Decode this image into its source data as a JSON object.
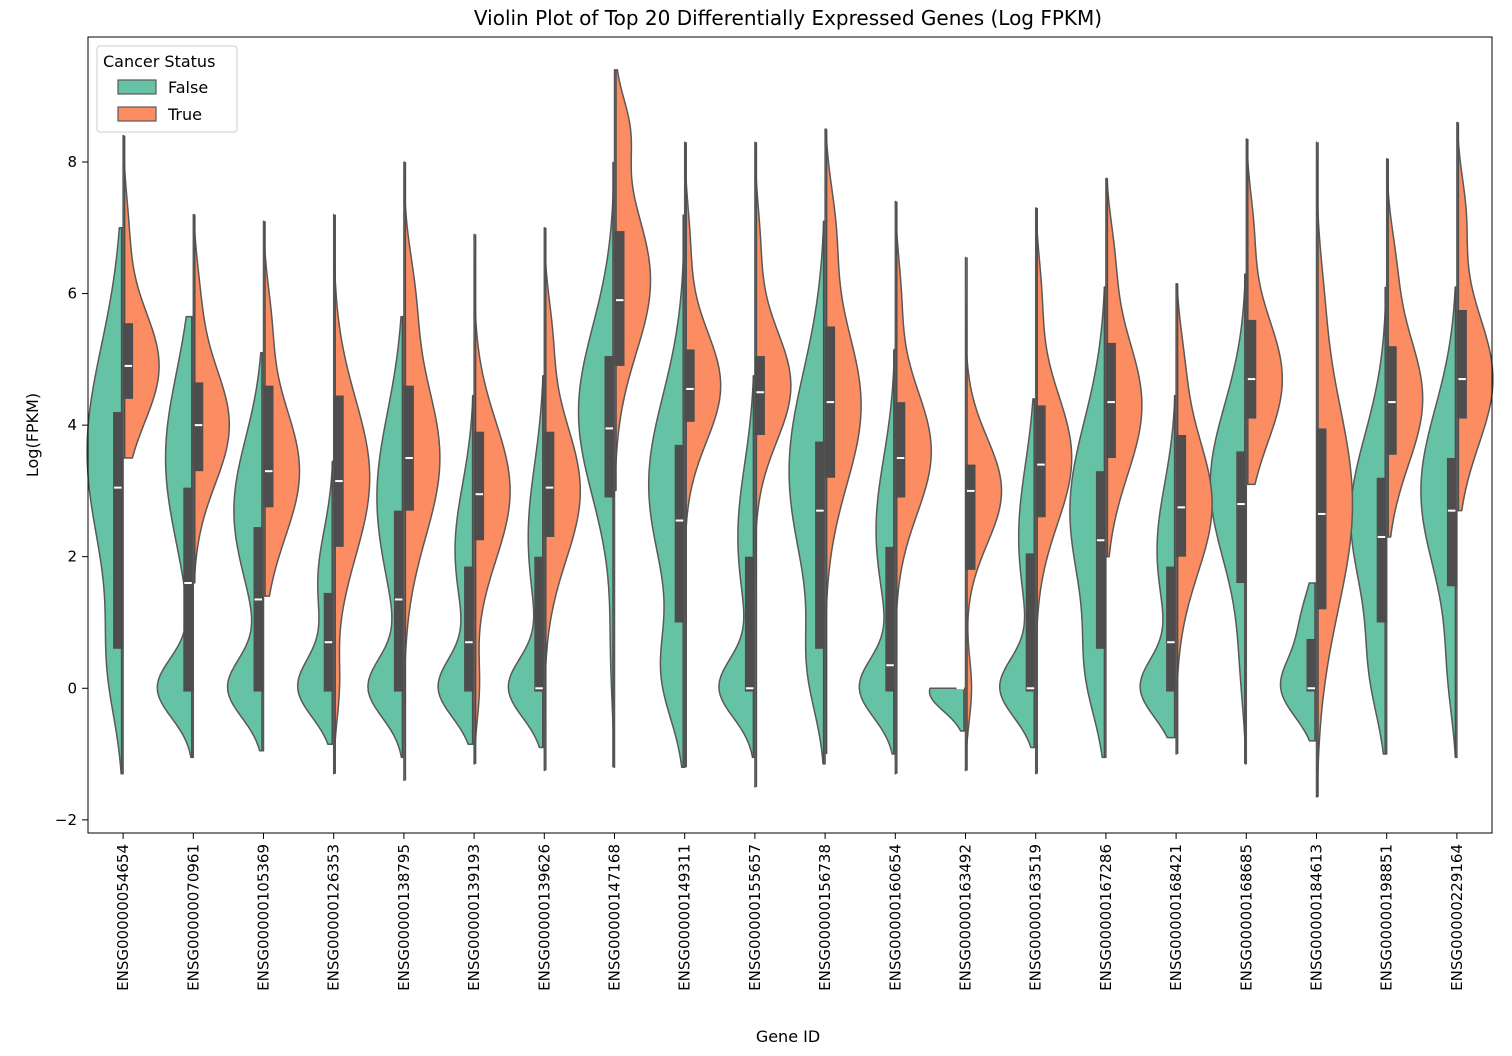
{
  "chart_data": {
    "type": "violin",
    "title": "Violin Plot of Top 20 Differentially Expressed Genes (Log FPKM)",
    "xlabel": "Gene ID",
    "ylabel": "Log(FPKM)",
    "ylim": [
      -2.2,
      9.9
    ],
    "yticks": [
      -2,
      0,
      2,
      4,
      6,
      8
    ],
    "ytick_labels": [
      "−2",
      "0",
      "2",
      "4",
      "6",
      "8"
    ],
    "split": true,
    "legend": {
      "title": "Cancer Status",
      "placement": "top-left",
      "entries": [
        {
          "label": "False",
          "color": "#66c2a5"
        },
        {
          "label": "True",
          "color": "#fc8d62"
        }
      ]
    },
    "colors": {
      "false": "#66c2a5",
      "true": "#fc8d62",
      "outline": "#595959",
      "box": "#4d4d4d"
    },
    "categories": [
      "ENSG00000054654",
      "ENSG00000070961",
      "ENSG00000105369",
      "ENSG00000126353",
      "ENSG00000138795",
      "ENSG00000139193",
      "ENSG00000139626",
      "ENSG00000147168",
      "ENSG00000149311",
      "ENSG00000155657",
      "ENSG00000156738",
      "ENSG00000160654",
      "ENSG00000163492",
      "ENSG00000163519",
      "ENSG00000167286",
      "ENSG00000168421",
      "ENSG00000168685",
      "ENSG00000184613",
      "ENSG00000198851",
      "ENSG00000229164"
    ],
    "series": [
      {
        "name": "False",
        "violins": [
          {
            "min": -1.3,
            "max": 7.0,
            "q1": 0.6,
            "median": 3.05,
            "q3": 4.2,
            "modes": [
              [
                3.6,
                0.75,
                1.6
              ],
              [
                0.3,
                0.25,
                0.8
              ]
            ]
          },
          {
            "min": -1.05,
            "max": 5.65,
            "q1": -0.05,
            "median": 1.6,
            "q3": 3.05,
            "modes": [
              [
                0.0,
                0.7,
                0.45
              ],
              [
                3.5,
                0.55,
                1.3
              ]
            ]
          },
          {
            "min": -0.95,
            "max": 5.1,
            "q1": -0.05,
            "median": 1.35,
            "q3": 2.45,
            "modes": [
              [
                0.0,
                0.7,
                0.45
              ],
              [
                2.7,
                0.6,
                1.1
              ]
            ]
          },
          {
            "min": -0.85,
            "max": 3.45,
            "q1": -0.05,
            "median": 0.7,
            "q3": 1.45,
            "modes": [
              [
                0.0,
                0.85,
                0.45
              ],
              [
                1.6,
                0.4,
                0.8
              ]
            ]
          },
          {
            "min": -1.05,
            "max": 5.65,
            "q1": -0.05,
            "median": 1.35,
            "q3": 2.7,
            "modes": [
              [
                0.0,
                0.75,
                0.45
              ],
              [
                2.9,
                0.6,
                1.3
              ]
            ]
          },
          {
            "min": -0.85,
            "max": 4.45,
            "q1": -0.05,
            "median": 0.7,
            "q3": 1.85,
            "modes": [
              [
                0.0,
                0.8,
                0.45
              ],
              [
                2.1,
                0.45,
                1.0
              ]
            ]
          },
          {
            "min": -0.9,
            "max": 4.75,
            "q1": -0.05,
            "median": 0.0,
            "q3": 2.0,
            "modes": [
              [
                0.0,
                0.85,
                0.45
              ],
              [
                2.3,
                0.4,
                1.1
              ]
            ]
          },
          {
            "min": -1.2,
            "max": 8.0,
            "q1": 2.9,
            "median": 3.95,
            "q3": 5.05,
            "modes": [
              [
                4.2,
                0.85,
                1.3
              ],
              [
                0.5,
                0.08,
                0.8
              ]
            ]
          },
          {
            "min": -1.2,
            "max": 7.2,
            "q1": 1.0,
            "median": 2.55,
            "q3": 3.7,
            "modes": [
              [
                3.1,
                0.8,
                1.35
              ],
              [
                0.2,
                0.45,
                0.7
              ]
            ]
          },
          {
            "min": -1.05,
            "max": 4.75,
            "q1": -0.05,
            "median": 0.0,
            "q3": 2.0,
            "modes": [
              [
                0.0,
                0.8,
                0.45
              ],
              [
                2.3,
                0.4,
                1.1
              ]
            ]
          },
          {
            "min": -1.15,
            "max": 7.1,
            "q1": 0.6,
            "median": 2.7,
            "q3": 3.75,
            "modes": [
              [
                3.3,
                0.8,
                1.5
              ],
              [
                0.3,
                0.3,
                0.7
              ]
            ]
          },
          {
            "min": -1.0,
            "max": 5.15,
            "q1": -0.05,
            "median": 0.35,
            "q3": 2.15,
            "modes": [
              [
                0.0,
                0.8,
                0.45
              ],
              [
                2.4,
                0.45,
                1.1
              ]
            ]
          },
          {
            "min": -0.65,
            "max": 0.0,
            "q1": 0.0,
            "median": 0.0,
            "q3": 0.0,
            "modes": [
              [
                -0.05,
                0.8,
                0.3
              ]
            ]
          },
          {
            "min": -0.9,
            "max": 4.4,
            "q1": -0.05,
            "median": 0.0,
            "q3": 2.05,
            "modes": [
              [
                0.0,
                0.8,
                0.45
              ],
              [
                2.3,
                0.4,
                1.1
              ]
            ]
          },
          {
            "min": -1.05,
            "max": 6.1,
            "q1": 0.6,
            "median": 2.25,
            "q3": 3.3,
            "modes": [
              [
                2.7,
                0.75,
                1.35
              ],
              [
                0.2,
                0.3,
                0.7
              ]
            ]
          },
          {
            "min": -0.75,
            "max": 4.45,
            "q1": -0.05,
            "median": 0.7,
            "q3": 1.85,
            "modes": [
              [
                0.0,
                0.8,
                0.45
              ],
              [
                2.1,
                0.45,
                1.0
              ]
            ]
          },
          {
            "min": -1.15,
            "max": 6.3,
            "q1": 1.6,
            "median": 2.8,
            "q3": 3.6,
            "modes": [
              [
                3.1,
                0.85,
                1.2
              ],
              [
                0.3,
                0.1,
                0.7
              ]
            ]
          },
          {
            "min": -0.8,
            "max": 1.6,
            "q1": -0.05,
            "median": 0.0,
            "q3": 0.75,
            "modes": [
              [
                0.0,
                0.8,
                0.45
              ],
              [
                1.0,
                0.35,
                0.5
              ]
            ]
          },
          {
            "min": -1.0,
            "max": 6.1,
            "q1": 1.0,
            "median": 2.3,
            "q3": 3.2,
            "modes": [
              [
                2.6,
                0.75,
                1.25
              ],
              [
                0.2,
                0.25,
                0.7
              ]
            ]
          },
          {
            "min": -1.05,
            "max": 6.1,
            "q1": 1.55,
            "median": 2.7,
            "q3": 3.5,
            "modes": [
              [
                3.0,
                0.8,
                1.25
              ],
              [
                0.2,
                0.15,
                0.7
              ]
            ]
          }
        ]
      },
      {
        "name": "True",
        "violins": [
          {
            "min": 3.5,
            "max": 8.4,
            "q1": 4.4,
            "median": 4.9,
            "q3": 5.55,
            "modes": [
              [
                4.9,
                0.95,
                0.85
              ],
              [
                7.0,
                0.12,
                0.6
              ]
            ]
          },
          {
            "min": 1.6,
            "max": 7.2,
            "q1": 3.3,
            "median": 4.0,
            "q3": 4.65,
            "modes": [
              [
                4.0,
                0.95,
                0.9
              ],
              [
                6.0,
                0.12,
                0.6
              ]
            ]
          },
          {
            "min": 1.4,
            "max": 7.1,
            "q1": 2.75,
            "median": 3.3,
            "q3": 4.6,
            "modes": [
              [
                3.3,
                0.9,
                1.0
              ],
              [
                5.6,
                0.15,
                0.6
              ]
            ]
          },
          {
            "min": -1.3,
            "max": 7.2,
            "q1": 2.15,
            "median": 3.15,
            "q3": 4.45,
            "modes": [
              [
                3.2,
                0.9,
                1.2
              ],
              [
                0.0,
                0.12,
                0.5
              ]
            ]
          },
          {
            "min": -1.4,
            "max": 8.0,
            "q1": 2.7,
            "median": 3.5,
            "q3": 4.6,
            "modes": [
              [
                3.5,
                0.9,
                1.2
              ],
              [
                6.0,
                0.2,
                0.7
              ]
            ]
          },
          {
            "min": -1.15,
            "max": 6.9,
            "q1": 2.25,
            "median": 2.95,
            "q3": 3.9,
            "modes": [
              [
                3.0,
                0.9,
                1.05
              ],
              [
                0.0,
                0.12,
                0.5
              ]
            ]
          },
          {
            "min": -1.25,
            "max": 7.0,
            "q1": 2.3,
            "median": 3.05,
            "q3": 3.9,
            "modes": [
              [
                3.0,
                0.9,
                1.05
              ],
              [
                5.4,
                0.15,
                0.6
              ]
            ]
          },
          {
            "min": 3.0,
            "max": 9.4,
            "q1": 4.9,
            "median": 5.9,
            "q3": 6.95,
            "modes": [
              [
                6.2,
                0.9,
                1.1
              ],
              [
                8.5,
                0.3,
                0.5
              ]
            ]
          },
          {
            "min": -1.2,
            "max": 8.3,
            "q1": 4.05,
            "median": 4.55,
            "q3": 5.15,
            "modes": [
              [
                4.6,
                0.95,
                0.85
              ],
              [
                6.8,
                0.12,
                0.6
              ]
            ]
          },
          {
            "min": -1.5,
            "max": 8.3,
            "q1": 3.85,
            "median": 4.5,
            "q3": 5.05,
            "modes": [
              [
                4.6,
                0.95,
                0.85
              ],
              [
                6.8,
                0.12,
                0.6
              ]
            ]
          },
          {
            "min": -1.0,
            "max": 8.5,
            "q1": 3.2,
            "median": 4.35,
            "q3": 5.5,
            "modes": [
              [
                4.3,
                0.85,
                1.2
              ],
              [
                7.0,
                0.2,
                0.7
              ]
            ]
          },
          {
            "min": -1.3,
            "max": 7.4,
            "q1": 2.9,
            "median": 3.5,
            "q3": 4.35,
            "modes": [
              [
                3.6,
                0.9,
                0.95
              ],
              [
                6.0,
                0.12,
                0.6
              ]
            ]
          },
          {
            "min": -1.25,
            "max": 6.55,
            "q1": 1.8,
            "median": 3.0,
            "q3": 3.4,
            "modes": [
              [
                3.0,
                0.9,
                0.8
              ],
              [
                0.0,
                0.15,
                0.5
              ]
            ]
          },
          {
            "min": -1.3,
            "max": 7.3,
            "q1": 2.6,
            "median": 3.4,
            "q3": 4.3,
            "modes": [
              [
                3.5,
                0.9,
                1.0
              ],
              [
                6.0,
                0.12,
                0.6
              ]
            ]
          },
          {
            "min": 2.0,
            "max": 7.75,
            "q1": 3.5,
            "median": 4.35,
            "q3": 5.25,
            "modes": [
              [
                4.3,
                0.9,
                1.05
              ],
              [
                6.6,
                0.15,
                0.6
              ]
            ]
          },
          {
            "min": -1.0,
            "max": 6.15,
            "q1": 2.0,
            "median": 2.75,
            "q3": 3.85,
            "modes": [
              [
                2.8,
                0.9,
                1.05
              ],
              [
                5.0,
                0.12,
                0.6
              ]
            ]
          },
          {
            "min": 3.1,
            "max": 8.35,
            "q1": 4.1,
            "median": 4.7,
            "q3": 5.6,
            "modes": [
              [
                4.7,
                0.9,
                0.95
              ],
              [
                7.0,
                0.15,
                0.6
              ]
            ]
          },
          {
            "min": -1.65,
            "max": 8.3,
            "q1": 1.2,
            "median": 2.65,
            "q3": 3.95,
            "modes": [
              [
                2.8,
                0.9,
                1.6
              ],
              [
                6.0,
                0.08,
                0.7
              ]
            ]
          },
          {
            "min": 2.3,
            "max": 8.05,
            "q1": 3.55,
            "median": 4.35,
            "q3": 5.2,
            "modes": [
              [
                4.4,
                0.9,
                1.0
              ],
              [
                6.5,
                0.15,
                0.6
              ]
            ]
          },
          {
            "min": 2.7,
            "max": 8.6,
            "q1": 4.1,
            "median": 4.7,
            "q3": 5.75,
            "modes": [
              [
                4.7,
                0.9,
                1.0
              ],
              [
                7.2,
                0.2,
                0.6
              ]
            ]
          }
        ]
      }
    ]
  }
}
